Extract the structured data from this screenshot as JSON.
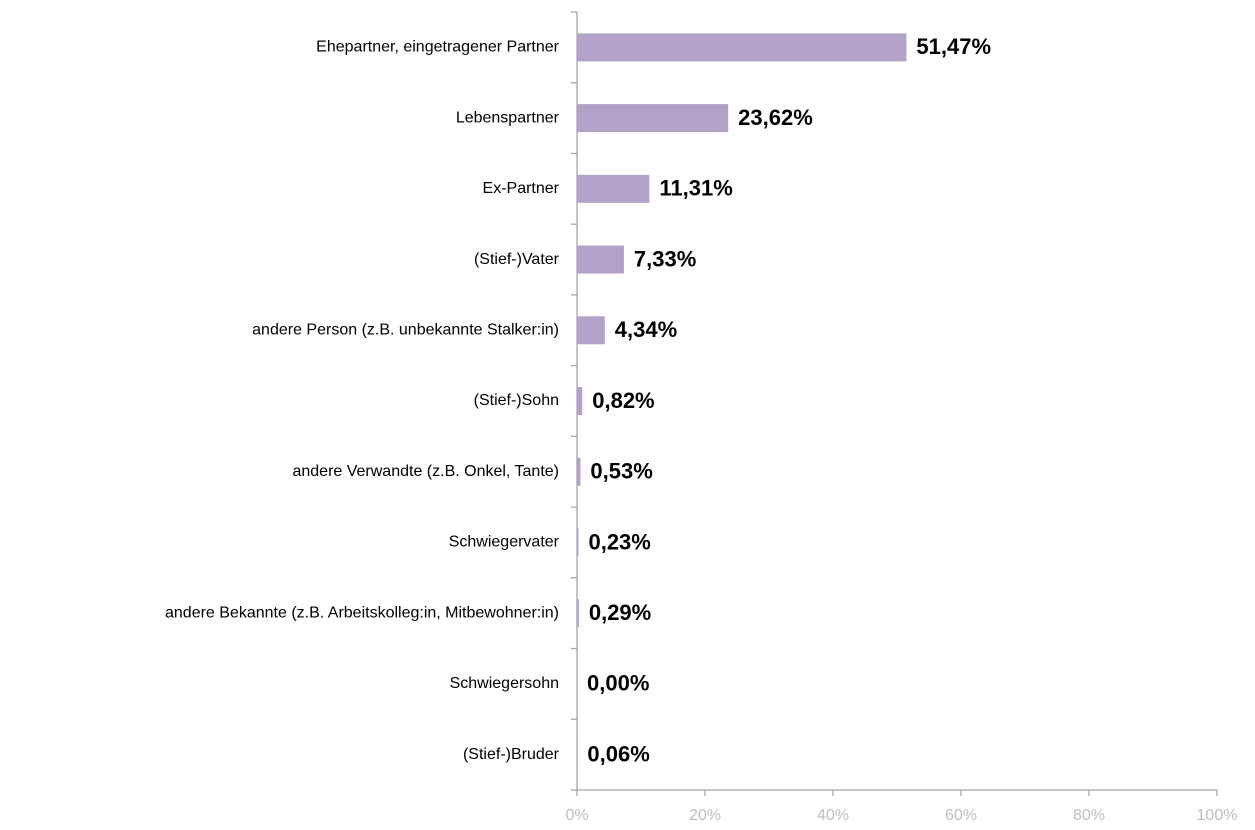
{
  "chart_data": {
    "type": "barh",
    "categories": [
      "Ehepartner, eingetragener Partner",
      "Lebenspartner",
      "Ex-Partner",
      "(Stief-)Vater",
      "andere Person (z.B. unbekannte Stalker:in)",
      "(Stief-)Sohn",
      "andere Verwandte (z.B. Onkel, Tante)",
      "Schwiegervater",
      "andere Bekannte (z.B. Arbeitskolleg:in, Mitbewohner:in)",
      "Schwiegersohn",
      "(Stief-)Bruder"
    ],
    "values": [
      51.47,
      23.62,
      11.31,
      7.33,
      4.34,
      0.82,
      0.53,
      0.23,
      0.29,
      0.0,
      0.06
    ],
    "value_labels": [
      "51,47%",
      "23,62%",
      "11,31%",
      "7,33%",
      "4,34%",
      "0,82%",
      "0,53%",
      "0,23%",
      "0,29%",
      "0,00%",
      "0,06%"
    ],
    "color": "#b3a2c7",
    "xlim": [
      0,
      100
    ],
    "xticks": [
      {
        "value": 0,
        "label": "0%"
      },
      {
        "value": 20,
        "label": "20%"
      },
      {
        "value": 40,
        "label": "40%"
      },
      {
        "value": 60,
        "label": "60%"
      },
      {
        "value": 80,
        "label": "80%"
      },
      {
        "value": 100,
        "label": "100%"
      }
    ],
    "grid": false
  }
}
